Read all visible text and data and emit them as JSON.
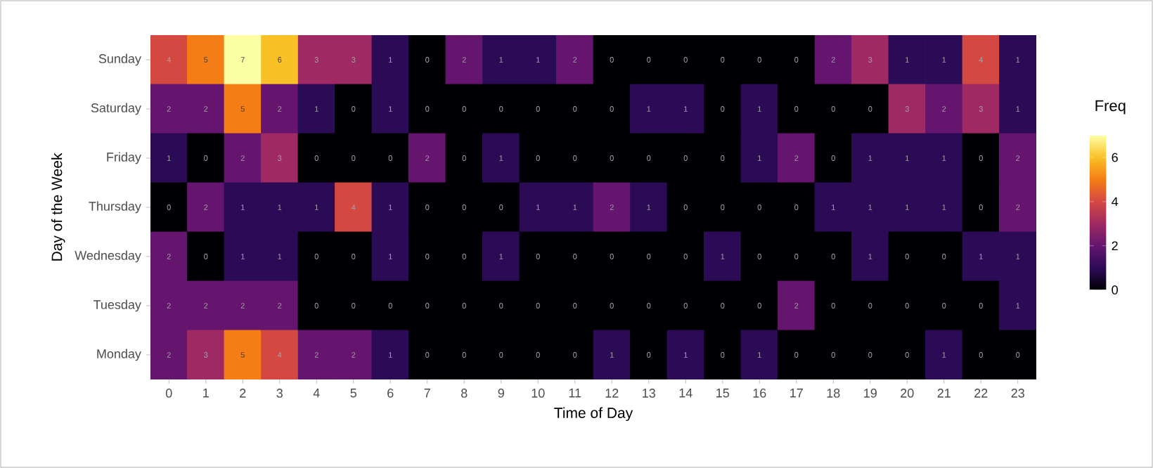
{
  "chart_data": {
    "type": "heatmap",
    "xlabel": "Time of Day",
    "ylabel": "Day of the Week",
    "clabel": "Freq",
    "categories": [
      "0",
      "1",
      "2",
      "3",
      "4",
      "5",
      "6",
      "7",
      "8",
      "9",
      "10",
      "11",
      "12",
      "13",
      "14",
      "15",
      "16",
      "17",
      "18",
      "19",
      "20",
      "21",
      "22",
      "23"
    ],
    "y_categories": [
      "Sunday",
      "Saturday",
      "Friday",
      "Thursday",
      "Wednesday",
      "Tuesday",
      "Monday"
    ],
    "cells": [
      [
        4,
        5,
        7,
        6,
        3,
        3,
        1,
        0,
        2,
        1,
        1,
        2,
        0,
        0,
        0,
        0,
        0,
        0,
        2,
        3,
        1,
        1,
        4,
        1
      ],
      [
        2,
        2,
        5,
        2,
        1,
        0,
        1,
        0,
        0,
        0,
        0,
        0,
        0,
        1,
        1,
        0,
        1,
        0,
        0,
        0,
        3,
        2,
        3,
        1
      ],
      [
        1,
        0,
        2,
        3,
        0,
        0,
        0,
        2,
        0,
        1,
        0,
        0,
        0,
        0,
        0,
        0,
        1,
        2,
        0,
        1,
        1,
        1,
        0,
        2
      ],
      [
        0,
        2,
        1,
        1,
        1,
        4,
        1,
        0,
        0,
        0,
        1,
        1,
        2,
        1,
        0,
        0,
        0,
        0,
        1,
        1,
        1,
        1,
        0,
        2
      ],
      [
        2,
        0,
        1,
        1,
        0,
        0,
        1,
        0,
        0,
        1,
        0,
        0,
        0,
        0,
        0,
        1,
        0,
        0,
        0,
        1,
        0,
        0,
        1,
        1
      ],
      [
        2,
        2,
        2,
        2,
        0,
        0,
        0,
        0,
        0,
        0,
        0,
        0,
        0,
        0,
        0,
        0,
        0,
        2,
        0,
        0,
        0,
        0,
        0,
        1
      ],
      [
        2,
        3,
        5,
        4,
        2,
        2,
        1,
        0,
        0,
        0,
        0,
        0,
        1,
        0,
        1,
        0,
        1,
        0,
        0,
        0,
        0,
        1,
        0,
        0
      ]
    ],
    "clim": [
      0,
      7
    ],
    "cticks": [
      0,
      2,
      4,
      6
    ],
    "data_labels": true
  }
}
